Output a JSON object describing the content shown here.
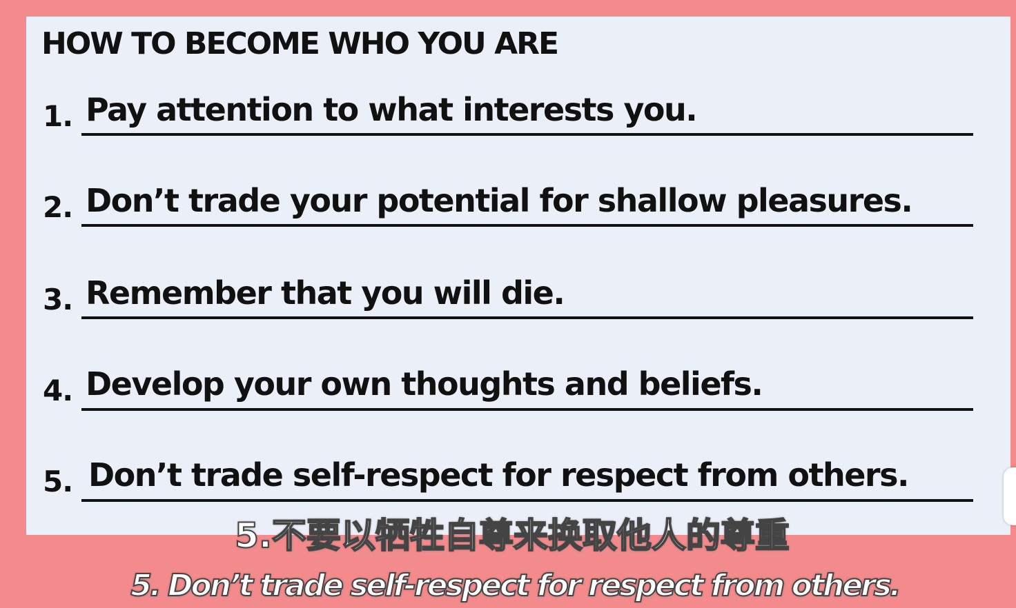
{
  "title": "HOW TO BECOME WHO YOU ARE",
  "items": [
    {
      "num": "1.",
      "text": "Pay attention to what interests you."
    },
    {
      "num": "2.",
      "text": "Don’t trade your potential for shallow pleasures."
    },
    {
      "num": "3.",
      "text": "Remember that you will die."
    },
    {
      "num": "4.",
      "text": "Develop your own thoughts and beliefs."
    },
    {
      "num": "5.",
      "text": "Don’t trade self-respect for respect from others."
    }
  ],
  "subtitles": {
    "chinese": "5.不要以牺牲自尊来换取他人的尊重",
    "english": "5. Don’t trade self-respect for respect from others."
  },
  "colors": {
    "background": "#f38a8c",
    "card": "#ebf0f8",
    "text": "#111111"
  }
}
